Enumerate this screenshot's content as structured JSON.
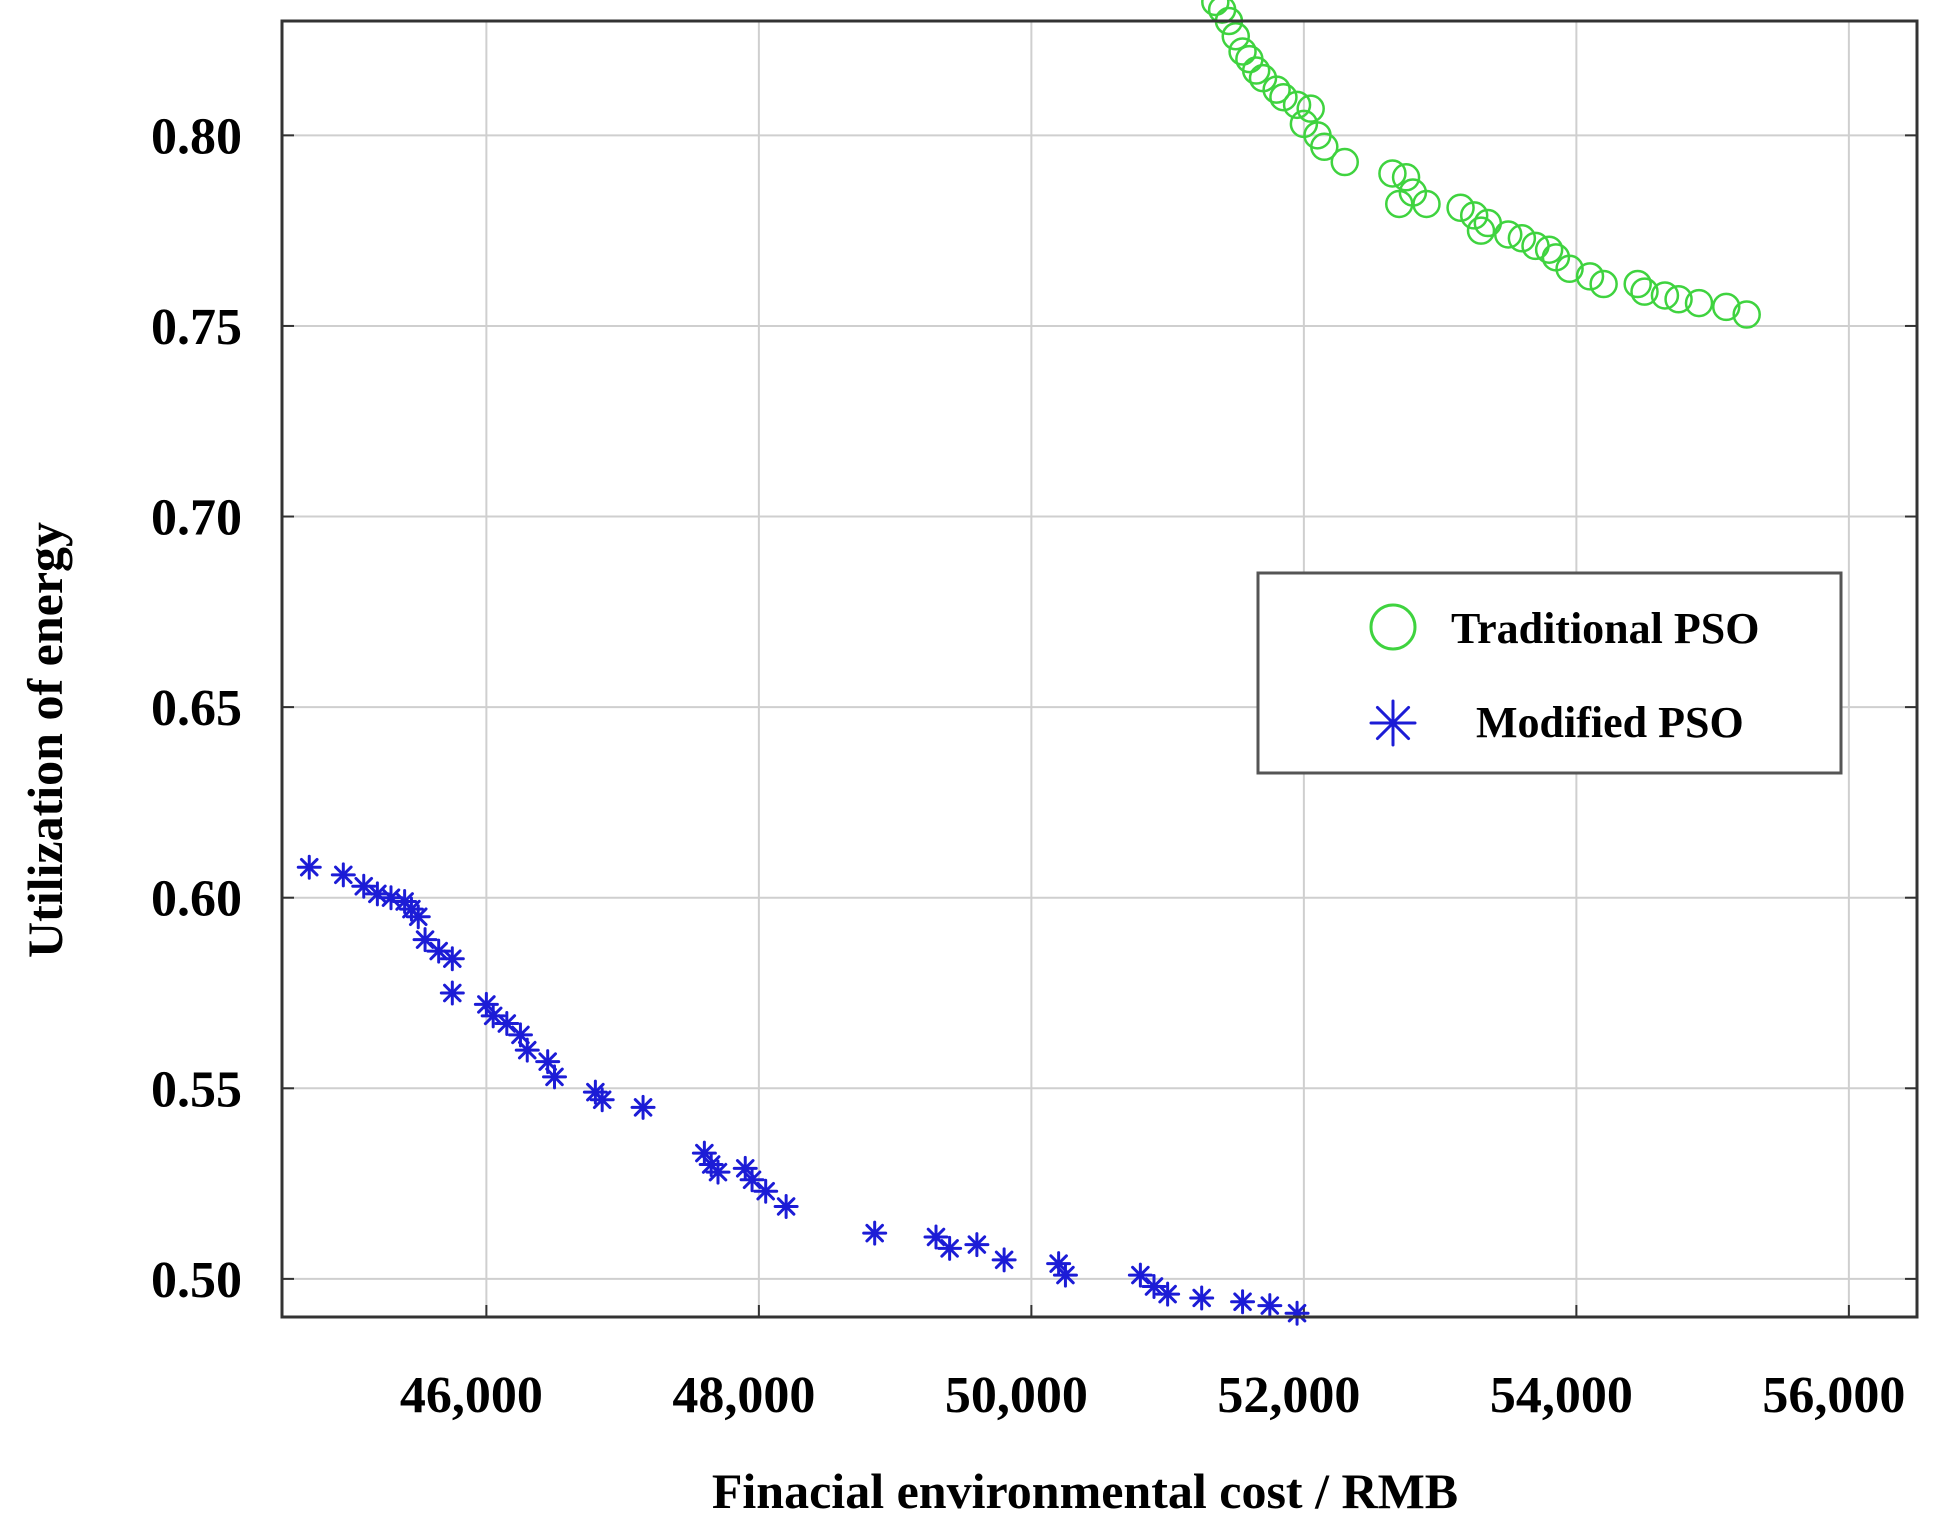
{
  "chart_data": {
    "type": "scatter",
    "title": "",
    "xlabel": "Finacial environmental cost / RMB",
    "ylabel": "Utilization of energy",
    "xlim": [
      44500,
      56500
    ],
    "ylim": [
      0.49,
      0.83
    ],
    "x_ticks": [
      46000,
      48000,
      50000,
      52000,
      54000,
      56000
    ],
    "x_tick_labels": [
      "46,000",
      "48,000",
      "50,000",
      "52,000",
      "54,000",
      "56,000"
    ],
    "y_ticks": [
      0.5,
      0.55,
      0.6,
      0.65,
      0.7,
      0.75,
      0.8
    ],
    "y_tick_labels": [
      "0.50",
      "0.55",
      "0.60",
      "0.65",
      "0.70",
      "0.75",
      "0.80"
    ],
    "grid": true,
    "legend_position": "right",
    "series": [
      {
        "name": "Traditional PSO",
        "color": "#3fd33f",
        "marker": "circle",
        "points": [
          [
            51350,
            0.835
          ],
          [
            51400,
            0.833
          ],
          [
            51450,
            0.83
          ],
          [
            51500,
            0.826
          ],
          [
            51550,
            0.822
          ],
          [
            51600,
            0.82
          ],
          [
            51650,
            0.817
          ],
          [
            51700,
            0.815
          ],
          [
            51800,
            0.812
          ],
          [
            51850,
            0.81
          ],
          [
            51950,
            0.808
          ],
          [
            52050,
            0.807
          ],
          [
            52000,
            0.803
          ],
          [
            52100,
            0.8
          ],
          [
            52150,
            0.797
          ],
          [
            52300,
            0.793
          ],
          [
            52650,
            0.79
          ],
          [
            52750,
            0.789
          ],
          [
            52800,
            0.785
          ],
          [
            52900,
            0.782
          ],
          [
            52700,
            0.782
          ],
          [
            53150,
            0.781
          ],
          [
            53250,
            0.779
          ],
          [
            53350,
            0.777
          ],
          [
            53300,
            0.775
          ],
          [
            53500,
            0.774
          ],
          [
            53600,
            0.773
          ],
          [
            53700,
            0.771
          ],
          [
            53800,
            0.77
          ],
          [
            53850,
            0.768
          ],
          [
            53950,
            0.765
          ],
          [
            54100,
            0.763
          ],
          [
            54200,
            0.761
          ],
          [
            54450,
            0.761
          ],
          [
            54500,
            0.759
          ],
          [
            54650,
            0.758
          ],
          [
            54750,
            0.757
          ],
          [
            54900,
            0.756
          ],
          [
            55100,
            0.755
          ],
          [
            55250,
            0.753
          ]
        ]
      },
      {
        "name": "Modified PSO",
        "color": "#1c1cd6",
        "marker": "asterisk",
        "points": [
          [
            44700,
            0.608
          ],
          [
            44950,
            0.606
          ],
          [
            45100,
            0.603
          ],
          [
            45200,
            0.601
          ],
          [
            45300,
            0.6
          ],
          [
            45400,
            0.599
          ],
          [
            45450,
            0.597
          ],
          [
            45500,
            0.595
          ],
          [
            45550,
            0.589
          ],
          [
            45650,
            0.586
          ],
          [
            45750,
            0.584
          ],
          [
            45750,
            0.575
          ],
          [
            46000,
            0.572
          ],
          [
            46050,
            0.569
          ],
          [
            46150,
            0.567
          ],
          [
            46250,
            0.564
          ],
          [
            46300,
            0.56
          ],
          [
            46450,
            0.557
          ],
          [
            46500,
            0.553
          ],
          [
            46800,
            0.549
          ],
          [
            46850,
            0.547
          ],
          [
            47150,
            0.545
          ],
          [
            47600,
            0.533
          ],
          [
            47650,
            0.53
          ],
          [
            47700,
            0.528
          ],
          [
            47900,
            0.529
          ],
          [
            47950,
            0.526
          ],
          [
            48050,
            0.523
          ],
          [
            48200,
            0.519
          ],
          [
            48850,
            0.512
          ],
          [
            49300,
            0.511
          ],
          [
            49400,
            0.508
          ],
          [
            49600,
            0.509
          ],
          [
            49800,
            0.505
          ],
          [
            50200,
            0.504
          ],
          [
            50250,
            0.501
          ],
          [
            50800,
            0.501
          ],
          [
            50900,
            0.498
          ],
          [
            51000,
            0.496
          ],
          [
            51250,
            0.495
          ],
          [
            51550,
            0.494
          ],
          [
            51750,
            0.493
          ],
          [
            51950,
            0.491
          ]
        ]
      }
    ]
  }
}
